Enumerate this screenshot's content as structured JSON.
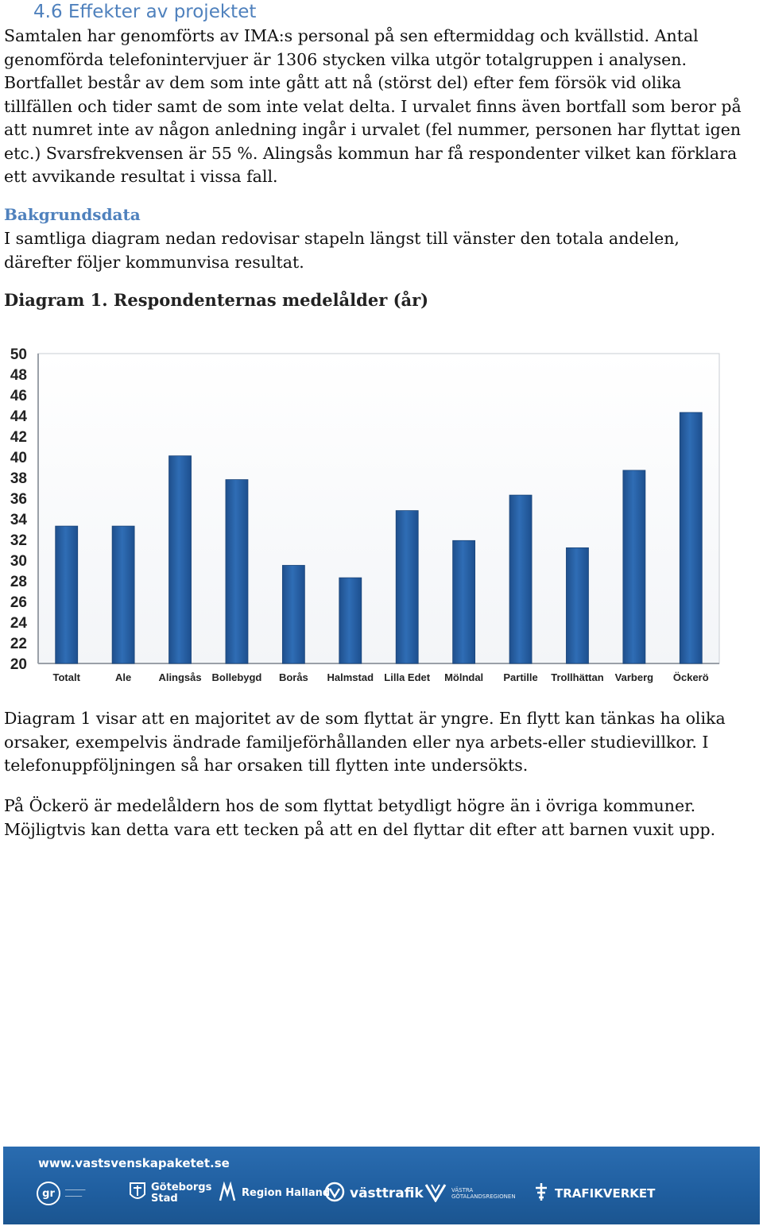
{
  "section": {
    "heading": "4.6 Effekter av projektet",
    "paragraph_lines": [
      "Samtalen har genomförts av IMA:s personal på sen eftermiddag och kvällstid. Antal",
      "genomförda telefonintervjuer är 1306 stycken vilka utgör totalgruppen i analysen.",
      "Bortfallet består av dem som inte gått att nå (störst del) efter fem försök vid olika",
      "tillfällen och tider samt de som inte velat delta. I urvalet finns även bortfall som beror på",
      "att numret inte av någon anledning ingår i urvalet (fel nummer, personen har flyttat igen",
      "etc.) Svarsfrekvensen är 55 %. Alingsås kommun har få respondenter vilket kan förklara",
      "ett avvikande resultat i vissa fall."
    ]
  },
  "background": {
    "heading": "Bakgrundsdata",
    "lines": [
      "I samtliga diagram nedan redovisar stapeln längst till vänster den totala andelen,",
      "därefter följer kommunvisa resultat."
    ]
  },
  "diagram": {
    "title": "Diagram 1. Respondenternas medelålder (år)"
  },
  "chart_data": {
    "type": "bar",
    "categories": [
      "Totalt",
      "Ale",
      "Alingsås",
      "Bollebygd",
      "Borås",
      "Halmstad",
      "Lilla Edet",
      "Mölndal",
      "Partille",
      "Trollhättan",
      "Varberg",
      "Öckerö"
    ],
    "values": [
      33.3,
      33.3,
      40.1,
      37.8,
      29.5,
      28.3,
      34.8,
      31.9,
      36.3,
      31.2,
      38.7,
      44.3
    ],
    "ylim": [
      20,
      50
    ],
    "yticks": [
      20,
      22,
      24,
      26,
      28,
      30,
      32,
      34,
      36,
      38,
      40,
      42,
      44,
      46,
      48,
      50
    ],
    "title": "",
    "xlabel": "",
    "ylabel": "",
    "grid": false,
    "bar_color": "#2f6db5"
  },
  "after_chart": {
    "paragraph1_lines": [
      "Diagram 1 visar att en majoritet av de som flyttat är yngre. En flytt kan tänkas ha olika",
      "orsaker, exempelvis ändrade familjeförhållanden eller nya arbets-eller studievillkor. I",
      "telefonuppföljningen så har orsaken till flytten inte undersökts."
    ],
    "paragraph2_lines": [
      "På Öckerö är medelåldern hos de som flyttat betydligt högre än i övriga kommuner.",
      "Möjligtvis kan detta vara ett tecken på att en del flyttar dit efter att barnen vuxit upp."
    ]
  },
  "footer": {
    "url": "www.vastsvenskapaketet.se",
    "logos": [
      {
        "icon": "gr-logo-icon",
        "mark": "gr"
      },
      {
        "icon": "goteborgs-stad-logo-icon",
        "name": "Göteborgs",
        "name2": "Stad"
      },
      {
        "icon": "region-halland-logo-icon",
        "name": "Region Halland"
      },
      {
        "icon": "vasttrafik-logo-icon",
        "name": "västtrafik"
      },
      {
        "icon": "vastra-gotalandsregionen-logo-icon",
        "name": "VÄSTRA",
        "name2": "GÖTALANDSREGIONEN"
      },
      {
        "icon": "trafikverket-logo-icon",
        "name": "TRAFIKVERKET"
      }
    ]
  }
}
